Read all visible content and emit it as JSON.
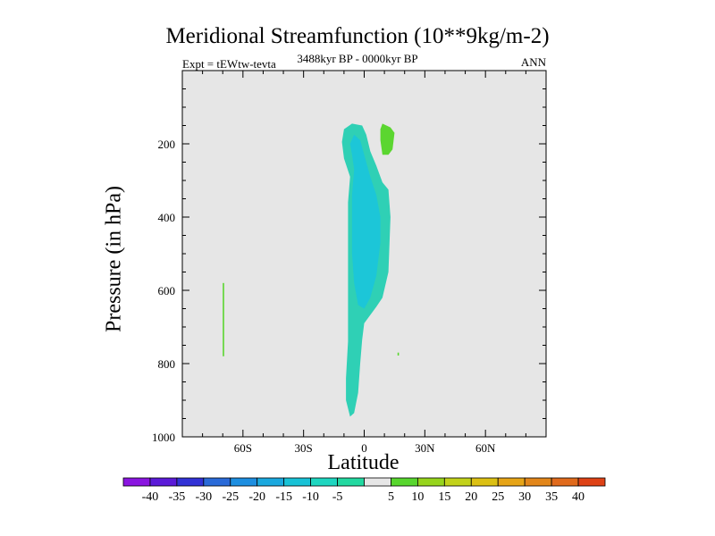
{
  "chart_data": {
    "type": "contour",
    "title": "Meridional Streamfunction (10**9kg/m-2)",
    "subtitle_left": "Expt = tEWtw-tevta",
    "subtitle_center": "3488kyr BP - 0000kyr BP",
    "subtitle_right": "ANN",
    "xlabel": "Latitude",
    "ylabel": "Pressure (in hPa)",
    "xlim": [
      -90,
      90
    ],
    "ylim": [
      1000,
      0
    ],
    "x_ticks": [
      {
        "value": -60,
        "label": "60S"
      },
      {
        "value": -30,
        "label": "30S"
      },
      {
        "value": 0,
        "label": "0"
      },
      {
        "value": 30,
        "label": "30N"
      },
      {
        "value": 60,
        "label": "60N"
      }
    ],
    "y_ticks": [
      {
        "value": 200,
        "label": "200"
      },
      {
        "value": 400,
        "label": "400"
      },
      {
        "value": 600,
        "label": "600"
      },
      {
        "value": 800,
        "label": "800"
      },
      {
        "value": 1000,
        "label": "1000"
      }
    ],
    "background_color": "#e6e6e6",
    "contour_regions": [
      {
        "name": "region-neg5-main",
        "level": "-10 to -5",
        "color": "#2fd0b5",
        "points": [
          [
            -11,
            195
          ],
          [
            -10,
            160
          ],
          [
            -6,
            145
          ],
          [
            -1,
            150
          ],
          [
            1,
            175
          ],
          [
            3,
            220
          ],
          [
            6,
            260
          ],
          [
            9,
            305
          ],
          [
            12,
            325
          ],
          [
            13,
            400
          ],
          [
            12,
            550
          ],
          [
            9,
            620
          ],
          [
            6,
            645
          ],
          [
            0,
            690
          ],
          [
            -1,
            735
          ],
          [
            -2,
            800
          ],
          [
            -3,
            880
          ],
          [
            -5,
            935
          ],
          [
            -7,
            945
          ],
          [
            -9,
            900
          ],
          [
            -9,
            840
          ],
          [
            -8,
            740
          ],
          [
            -8,
            640
          ],
          [
            -8,
            560
          ],
          [
            -8,
            460
          ],
          [
            -8,
            360
          ],
          [
            -7,
            290
          ],
          [
            -10,
            240
          ]
        ]
      },
      {
        "name": "region-neg10-core",
        "level": "-15 to -10",
        "color": "#1cc6d8",
        "points": [
          [
            -7,
            200
          ],
          [
            -5,
            175
          ],
          [
            -2,
            190
          ],
          [
            0,
            230
          ],
          [
            3,
            290
          ],
          [
            6,
            340
          ],
          [
            8,
            400
          ],
          [
            8,
            470
          ],
          [
            6,
            560
          ],
          [
            3,
            620
          ],
          [
            0,
            650
          ],
          [
            -3,
            640
          ],
          [
            -5,
            580
          ],
          [
            -6,
            500
          ],
          [
            -6,
            420
          ],
          [
            -6,
            340
          ],
          [
            -5,
            270
          ],
          [
            -6,
            230
          ]
        ]
      },
      {
        "name": "region-pos5-upper",
        "level": "5 to 10",
        "color": "#5bd630",
        "points": [
          [
            9,
            145
          ],
          [
            13,
            155
          ],
          [
            15,
            170
          ],
          [
            14,
            215
          ],
          [
            12,
            230
          ],
          [
            9,
            230
          ],
          [
            8,
            190
          ],
          [
            8,
            160
          ]
        ]
      },
      {
        "name": "region-pos5-south",
        "level": "5 to 10",
        "color": "#5bd630",
        "points": [
          [
            -70,
            580
          ],
          [
            -69.3,
            580
          ],
          [
            -69.3,
            780
          ],
          [
            -70,
            780
          ]
        ]
      },
      {
        "name": "region-pos5-speck",
        "level": "5 to 10",
        "color": "#5bd630",
        "points": [
          [
            16.5,
            770
          ],
          [
            17.2,
            770
          ],
          [
            17.2,
            778
          ],
          [
            16.5,
            778
          ]
        ]
      }
    ],
    "colorbar": {
      "labels": [
        "-40",
        "-35",
        "-30",
        "-25",
        "-20",
        "-15",
        "-10",
        "-5",
        "5",
        "10",
        "15",
        "20",
        "25",
        "30",
        "35",
        "40"
      ],
      "colors": [
        "#8a15e0",
        "#5b1ad8",
        "#3232d6",
        "#2a6ad8",
        "#1d8ee0",
        "#1aa8de",
        "#18c2d6",
        "#1ed6c0",
        "#22d8a0",
        "#e6e6e6",
        "#58d62e",
        "#96d41c",
        "#c2d21a",
        "#dcc013",
        "#e6a417",
        "#e2861a",
        "#e06a1c",
        "#de4216"
      ]
    }
  }
}
